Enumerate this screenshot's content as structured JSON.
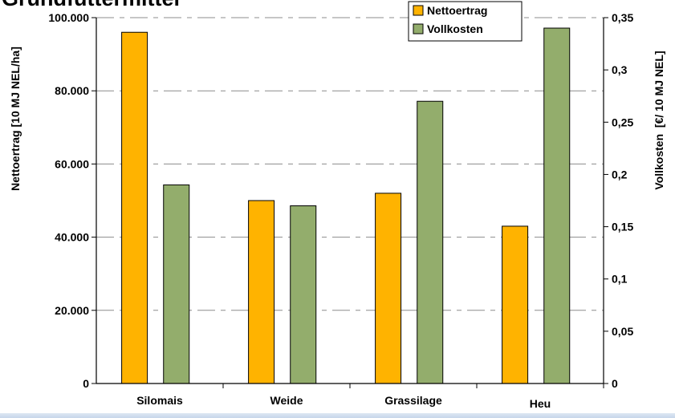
{
  "chart_data": {
    "type": "bar",
    "title": "Grundfuttermittel",
    "categories": [
      "Silomais",
      "Weide",
      "Grassilage",
      "Heu"
    ],
    "series": [
      {
        "name": "Nettoertrag",
        "axis": "left",
        "color": "#FFB300",
        "values": [
          96000,
          50000,
          52000,
          43000
        ]
      },
      {
        "name": "Vollkosten",
        "axis": "right",
        "color": "#93AD6C",
        "values": [
          0.19,
          0.17,
          0.27,
          0.34
        ]
      }
    ],
    "ylabel_left": "Nettoertrag [10 MJ NEL/ha]",
    "ylabel_right": "Vollkosten  [€/ 10 MJ NEL]",
    "ylim_left": [
      0,
      100000
    ],
    "ylim_right": [
      0,
      0.35
    ],
    "left_ticks": [
      "0",
      "20.000",
      "40.000",
      "60.000",
      "80.000",
      "100.000"
    ],
    "right_ticks": [
      "0",
      "0,05",
      "0,1",
      "0,15",
      "0,2",
      "0,25",
      "0,3",
      "0,35"
    ],
    "grid": "dashed horizontal at left-axis ticks",
    "legend_position": "top-right"
  }
}
